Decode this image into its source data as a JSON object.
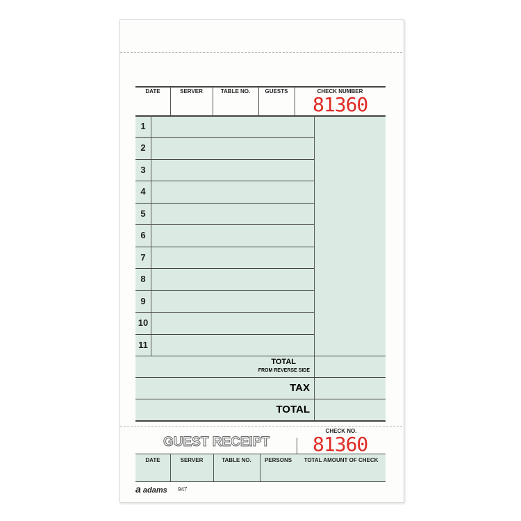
{
  "header": {
    "date": "DATE",
    "server": "SERVER",
    "table_no": "TABLE NO.",
    "guests": "GUESTS",
    "check_number_label": "CHECK NUMBER",
    "check_number": "81360"
  },
  "rows": [
    "1",
    "2",
    "3",
    "4",
    "5",
    "6",
    "7",
    "8",
    "9",
    "10",
    "11"
  ],
  "totals": {
    "total_reverse": "TOTAL",
    "from_reverse": "FROM REVERSE SIDE",
    "tax": "TAX",
    "total": "TOTAL"
  },
  "receipt": {
    "title": "GUEST RECEIPT",
    "check_no_label": "CHECK NO.",
    "check_no": "81360",
    "date": "DATE",
    "server": "SERVER",
    "table_no": "TABLE NO.",
    "persons": "PERSONS",
    "total_amount": "TOTAL AMOUNT OF CHECK"
  },
  "footer": {
    "brand": "adams",
    "form_number": "947"
  },
  "colors": {
    "green": "#dbebe3",
    "red": "#e02a24"
  }
}
